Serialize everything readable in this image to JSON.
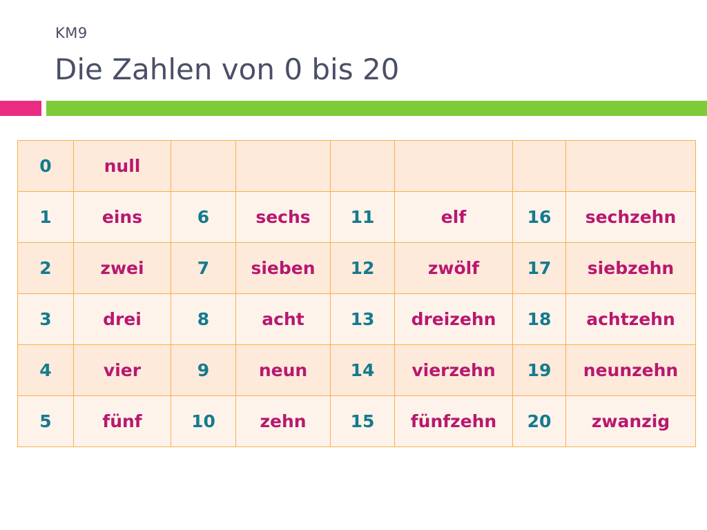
{
  "slide": {
    "subtitle": "KM9",
    "title": "Die Zahlen von 0 bis 20",
    "colors": {
      "text": "#4a4f66",
      "accent_pink": "#e92c81",
      "accent_green": "#7ecb3a",
      "table_border": "#f7b04a",
      "number_color": "#157a8e",
      "word_color": "#b8186f"
    }
  },
  "table": {
    "rows": [
      [
        "0",
        "null",
        "",
        "",
        "",
        "",
        "",
        ""
      ],
      [
        "1",
        "eins",
        "6",
        "sechs",
        "11",
        "elf",
        "16",
        "sechzehn"
      ],
      [
        "2",
        "zwei",
        "7",
        "sieben",
        "12",
        "zwölf",
        "17",
        "siebzehn"
      ],
      [
        "3",
        "drei",
        "8",
        "acht",
        "13",
        "dreizehn",
        "18",
        "achtzehn"
      ],
      [
        "4",
        "vier",
        "9",
        "neun",
        "14",
        "vierzehn",
        "19",
        "neunzehn"
      ],
      [
        "5",
        "fünf",
        "10",
        "zehn",
        "15",
        "fünfzehn",
        "20",
        "zwanzig"
      ]
    ]
  }
}
